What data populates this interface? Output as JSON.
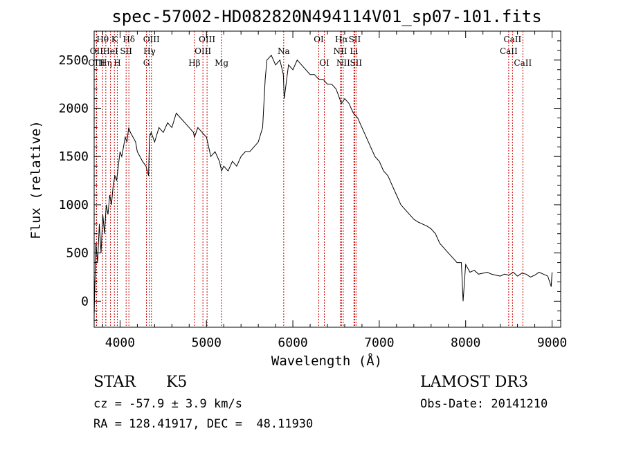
{
  "chart_data": {
    "type": "line",
    "title": "spec-57002-HD082820N494114V01_sp07-101.fits",
    "xlabel": "Wavelength (Å)",
    "ylabel": "Flux (relative)",
    "xlim": [
      3700,
      9100
    ],
    "ylim": [
      -270,
      2800
    ],
    "x_ticks": [
      4000,
      5000,
      6000,
      7000,
      8000,
      9000
    ],
    "y_ticks": [
      0,
      500,
      1000,
      1500,
      2000,
      2500
    ],
    "grid": false,
    "series": [
      {
        "name": "spectrum",
        "x": [
          3700,
          3720,
          3740,
          3760,
          3780,
          3800,
          3820,
          3840,
          3860,
          3880,
          3900,
          3920,
          3940,
          3960,
          3980,
          4000,
          4020,
          4040,
          4060,
          4080,
          4100,
          4120,
          4150,
          4180,
          4200,
          4230,
          4260,
          4300,
          4330,
          4340,
          4360,
          4400,
          4450,
          4500,
          4550,
          4600,
          4650,
          4700,
          4750,
          4800,
          4850,
          4860,
          4900,
          4950,
          5000,
          5050,
          5100,
          5150,
          5175,
          5200,
          5250,
          5300,
          5350,
          5400,
          5450,
          5500,
          5550,
          5600,
          5650,
          5680,
          5700,
          5750,
          5800,
          5850,
          5890,
          5900,
          5950,
          6000,
          6050,
          6100,
          6150,
          6200,
          6250,
          6300,
          6350,
          6400,
          6450,
          6500,
          6563,
          6600,
          6650,
          6700,
          6750,
          6800,
          6850,
          6900,
          6950,
          7000,
          7050,
          7100,
          7150,
          7200,
          7250,
          7300,
          7350,
          7400,
          7450,
          7500,
          7550,
          7600,
          7650,
          7700,
          7750,
          7800,
          7850,
          7900,
          7950,
          7970,
          8000,
          8050,
          8100,
          8150,
          8200,
          8250,
          8300,
          8350,
          8400,
          8450,
          8500,
          8550,
          8600,
          8650,
          8700,
          8750,
          8800,
          8850,
          8900,
          8950,
          8990,
          9000
        ],
        "y": [
          -150,
          600,
          400,
          800,
          500,
          900,
          700,
          1000,
          900,
          1100,
          1000,
          1200,
          1300,
          1250,
          1400,
          1550,
          1500,
          1600,
          1700,
          1650,
          1800,
          1750,
          1700,
          1650,
          1550,
          1500,
          1450,
          1400,
          1300,
          1700,
          1750,
          1650,
          1800,
          1750,
          1850,
          1800,
          1950,
          1900,
          1850,
          1800,
          1750,
          1700,
          1800,
          1750,
          1700,
          1500,
          1550,
          1450,
          1350,
          1400,
          1350,
          1450,
          1400,
          1500,
          1550,
          1550,
          1600,
          1650,
          1800,
          2300,
          2500,
          2550,
          2450,
          2500,
          2350,
          2100,
          2450,
          2400,
          2500,
          2450,
          2400,
          2350,
          2350,
          2300,
          2300,
          2250,
          2250,
          2200,
          2050,
          2100,
          2050,
          1950,
          1900,
          1800,
          1700,
          1600,
          1500,
          1450,
          1350,
          1300,
          1200,
          1100,
          1000,
          950,
          900,
          850,
          820,
          800,
          780,
          750,
          700,
          600,
          550,
          500,
          450,
          400,
          400,
          0,
          380,
          300,
          320,
          280,
          290,
          300,
          280,
          270,
          260,
          280,
          270,
          300,
          260,
          290,
          280,
          250,
          270,
          300,
          280,
          260,
          150,
          300
        ]
      }
    ],
    "line_markers": [
      {
        "label": "Hθ",
        "x": 3798,
        "row": 0
      },
      {
        "label": "OII",
        "x": 3727,
        "row": 1
      },
      {
        "label": "OIII",
        "x": 3727,
        "row": 2
      },
      {
        "label": "Hη",
        "x": 3835,
        "row": 2
      },
      {
        "label": "HeI",
        "x": 3889,
        "row": 1
      },
      {
        "label": "K",
        "x": 3934,
        "row": 0
      },
      {
        "label": "H",
        "x": 3968,
        "row": 2
      },
      {
        "label": "SII",
        "x": 4070,
        "row": 1
      },
      {
        "label": "Hδ",
        "x": 4102,
        "row": 0
      },
      {
        "label": "G",
        "x": 4305,
        "row": 2
      },
      {
        "label": "Hγ",
        "x": 4341,
        "row": 1
      },
      {
        "label": "OIII",
        "x": 4363,
        "row": 0
      },
      {
        "label": "Hβ",
        "x": 4861,
        "row": 2
      },
      {
        "label": "OIII",
        "x": 4959,
        "row": 1
      },
      {
        "label": "OIII",
        "x": 5007,
        "row": 0
      },
      {
        "label": "Mg",
        "x": 5175,
        "row": 2
      },
      {
        "label": "Na",
        "x": 5894,
        "row": 1
      },
      {
        "label": "OI",
        "x": 6300,
        "row": 0
      },
      {
        "label": "OI",
        "x": 6364,
        "row": 2
      },
      {
        "label": "NII",
        "x": 6548,
        "row": 1
      },
      {
        "label": "Hα",
        "x": 6563,
        "row": 0
      },
      {
        "label": "NII",
        "x": 6583,
        "row": 2
      },
      {
        "label": "Li",
        "x": 6707,
        "row": 1
      },
      {
        "label": "SII",
        "x": 6716,
        "row": 0
      },
      {
        "label": "SII",
        "x": 6731,
        "row": 2
      },
      {
        "label": "CaII",
        "x": 8498,
        "row": 1
      },
      {
        "label": "CaII",
        "x": 8542,
        "row": 0
      },
      {
        "label": "CaII",
        "x": 8662,
        "row": 2
      }
    ],
    "colors": {
      "spectrum": "#000000",
      "markers": "#cc0000"
    }
  },
  "info": {
    "object_class": "STAR",
    "subclass": "K5",
    "survey": "LAMOST DR3",
    "cz": "cz = -57.9 ± 3.9 km/s",
    "obs_date": "Obs-Date: 20141210",
    "coords": "RA = 128.41917, DEC =  48.11930"
  }
}
